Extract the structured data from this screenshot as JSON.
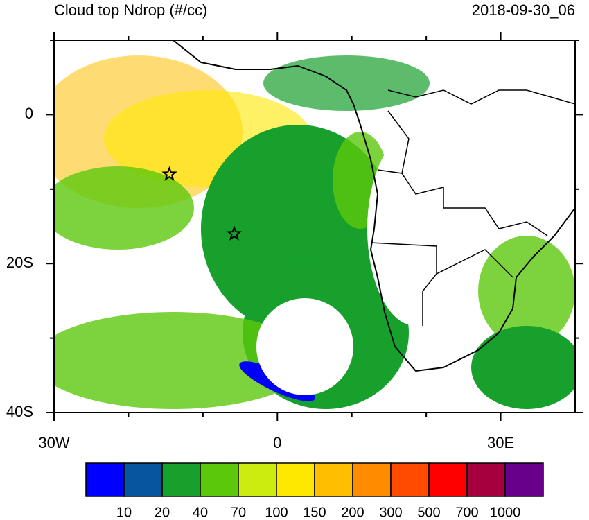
{
  "title": "Cloud top Ndrop (#/cc)",
  "date": "2018-09-30_06",
  "map": {
    "xlim": [
      -30,
      40
    ],
    "ylim": [
      -40,
      10
    ],
    "xticks": [
      {
        "value": -30,
        "label": "30W"
      },
      0,
      {
        "value": 30,
        "label": "30E"
      }
    ],
    "yticks": [
      0,
      {
        "value": -20,
        "label": "20S"
      },
      {
        "value": -40,
        "label": "40S"
      }
    ],
    "xminorticks": [
      -20,
      -10,
      10,
      20
    ],
    "yminorticks": [
      10,
      -10,
      -30
    ],
    "stars": [
      {
        "lon": -14.5,
        "lat": -8
      },
      {
        "lon": -5.8,
        "lat": -16
      }
    ]
  },
  "colorbar": {
    "colors": [
      "#0000ff",
      "#07559e",
      "#17a02c",
      "#5cc80c",
      "#ccec10",
      "#ffe800",
      "#ffbf00",
      "#ff8c00",
      "#ff4a00",
      "#ff0000",
      "#a6003e",
      "#68008c"
    ],
    "labels": [
      "10",
      "20",
      "40",
      "70",
      "100",
      "150",
      "200",
      "300",
      "500",
      "700",
      "1000"
    ]
  }
}
